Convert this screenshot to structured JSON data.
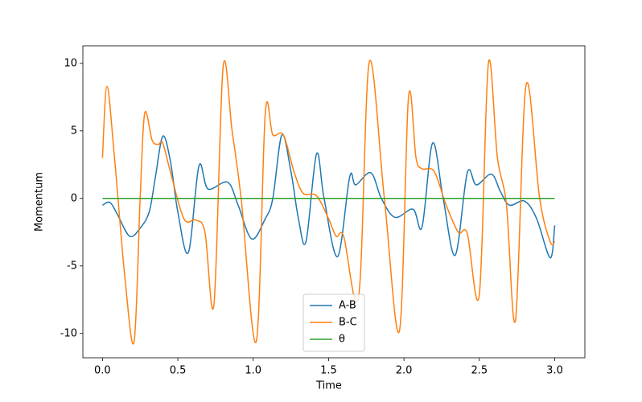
{
  "chart_data": {
    "type": "line",
    "xlabel": "Time",
    "ylabel": "Momentum",
    "xlim": [
      -0.13,
      3.2
    ],
    "ylim": [
      -11.8,
      11.3
    ],
    "xticks": [
      {
        "value": 0,
        "label": "0.0"
      },
      {
        "value": 0.5,
        "label": "0.5"
      },
      {
        "value": 1,
        "label": "1.0"
      },
      {
        "value": 1.5,
        "label": "1.5"
      },
      {
        "value": 2,
        "label": "2.0"
      },
      {
        "value": 2.5,
        "label": "2.5"
      },
      {
        "value": 3,
        "label": "3.0"
      }
    ],
    "yticks": [
      -10,
      -5,
      0,
      5,
      10
    ],
    "grid": false,
    "legend": "lower center",
    "series": [
      {
        "name": "A-B",
        "color": "#1f77b4",
        "x": [
          0,
          0.05,
          0.1,
          0.18,
          0.25,
          0.31,
          0.35,
          0.4,
          0.45,
          0.5,
          0.57,
          0.64,
          0.7,
          0.83,
          0.9,
          0.99,
          1.08,
          1.13,
          1.19,
          1.25,
          1.3,
          1.35,
          1.42,
          1.47,
          1.56,
          1.64,
          1.68,
          1.78,
          1.85,
          1.94,
          2.06,
          2.12,
          2.19,
          2.26,
          2.34,
          2.42,
          2.48,
          2.58,
          2.64,
          2.7,
          2.8,
          2.88,
          2.97,
          3.0
        ],
        "values": [
          -0.5,
          -0.3,
          -1.2,
          -2.8,
          -2.2,
          -1.0,
          1.5,
          4.6,
          2.8,
          -1.0,
          -4.0,
          2.4,
          0.7,
          1.2,
          -0.5,
          -3.0,
          -1.5,
          0.0,
          4.7,
          2.0,
          -1.5,
          -3.2,
          3.3,
          0.0,
          -4.3,
          1.6,
          1.0,
          1.9,
          0.0,
          -1.4,
          -0.8,
          -2.1,
          4.1,
          0.0,
          -4.2,
          1.9,
          1.0,
          1.8,
          0.5,
          -0.5,
          -0.2,
          -1.5,
          -4.4,
          -2.0
        ]
      },
      {
        "name": "B-C",
        "color": "#ff7f0e",
        "x": [
          0,
          0.03,
          0.08,
          0.15,
          0.21,
          0.25,
          0.28,
          0.33,
          0.37,
          0.4,
          0.45,
          0.54,
          0.62,
          0.68,
          0.74,
          0.8,
          0.86,
          0.92,
          1.02,
          1.08,
          1.13,
          1.2,
          1.27,
          1.33,
          1.42,
          1.5,
          1.55,
          1.6,
          1.7,
          1.77,
          1.87,
          1.97,
          2.03,
          2.08,
          2.12,
          2.2,
          2.28,
          2.36,
          2.42,
          2.5,
          2.56,
          2.62,
          2.68,
          2.74,
          2.81,
          2.9,
          2.97,
          3.0
        ],
        "values": [
          3,
          8.3,
          3.0,
          -6.0,
          -10.6,
          0.0,
          6.3,
          4.3,
          4.0,
          4.1,
          2.0,
          -1.5,
          -1.6,
          -2.5,
          -7.8,
          9.7,
          5.0,
          0.0,
          -10.6,
          6.3,
          4.7,
          4.7,
          2.0,
          0.4,
          0.2,
          -1.5,
          -2.8,
          -2.8,
          -7.2,
          10.1,
          0.0,
          -9.8,
          7.5,
          3.0,
          2.2,
          2.0,
          -0.5,
          -2.5,
          -2.6,
          -7.1,
          10.0,
          3.0,
          -0.5,
          -9.0,
          8.4,
          0.0,
          -3.2,
          -3.2
        ]
      },
      {
        "name": "θ",
        "color": "#2ca02c",
        "x": [
          0,
          3
        ],
        "values": [
          0,
          0
        ]
      }
    ]
  }
}
